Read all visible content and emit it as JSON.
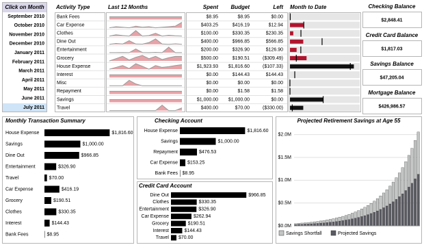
{
  "month_picker": {
    "title": "Click on Month",
    "months": [
      "September 2010",
      "October 2010",
      "November 2010",
      "December 2010",
      "January 2011",
      "February 2011",
      "March 2011",
      "April 2011",
      "May 2011",
      "June 2011",
      "July 2011"
    ],
    "selected_index": 10
  },
  "activity_table": {
    "header": [
      "Activity Type",
      "Spent",
      "Budget",
      "Left"
    ],
    "rows": [
      [
        "Bank Fees",
        "$8.95",
        "$8.95",
        "$0.00"
      ],
      [
        "Car Expense",
        "$403.25",
        "$416.19",
        "$12.94"
      ],
      [
        "Clothes",
        "$100.00",
        "$330.35",
        "$230.35"
      ],
      [
        "Dine Out",
        "$400.00",
        "$966.85",
        "$566.85"
      ],
      [
        "Entertainment",
        "$200.00",
        "$326.90",
        "$126.90"
      ],
      [
        "Grocery",
        "$500.00",
        "$190.51",
        "($309.49)"
      ],
      [
        "House Expense",
        "$1,923.93",
        "$1,816.60",
        "($107.33)"
      ],
      [
        "Interest",
        "$0.00",
        "$144.43",
        "$144.43"
      ],
      [
        "Misc",
        "$0.00",
        "$0.00",
        "$0.00"
      ],
      [
        "Repayment",
        "$0.00",
        "$1.58",
        "$1.58"
      ],
      [
        "Savings",
        "$1,000.00",
        "$1,000.00",
        "$0.00"
      ],
      [
        "Travel",
        "$400.00",
        "$70.00",
        "($330.00)"
      ]
    ],
    "over_budget": [
      false,
      false,
      false,
      false,
      false,
      true,
      true,
      false,
      false,
      false,
      false,
      true
    ]
  },
  "balances": [
    {
      "title": "Checking Balance",
      "value": "$2,848.41",
      "color": "#000000"
    },
    {
      "title": "Credit Card Balance",
      "value": "$1,817.03",
      "color": "#b0152e"
    },
    {
      "title": "Savings Balance",
      "value": "$47,205.04",
      "color": "#000000"
    },
    {
      "title": "Mortgage Balance",
      "value": "$426,986.57",
      "color": "#b0152e"
    }
  ],
  "chart_data": [
    {
      "type": "sparkline",
      "title": "Last 12 Months",
      "color": "#c8323c",
      "line_color": "#999999",
      "series": [
        {
          "values": [
            9,
            9,
            9,
            9,
            9,
            9,
            9,
            9,
            9,
            9,
            9,
            9
          ]
        },
        {
          "values": [
            300,
            320,
            310,
            300,
            330,
            310,
            320,
            300,
            310,
            320,
            330,
            400
          ]
        },
        {
          "values": [
            100,
            150,
            120,
            100,
            300,
            100,
            120,
            200,
            100,
            130,
            110,
            100
          ]
        },
        {
          "values": [
            400,
            450,
            420,
            600,
            420,
            410,
            500,
            700,
            420,
            400,
            430,
            400
          ]
        },
        {
          "values": [
            200,
            200,
            210,
            200,
            500,
            210,
            200,
            220,
            200,
            650,
            200,
            200
          ]
        },
        {
          "values": [
            400,
            450,
            500,
            420,
            480,
            520,
            450,
            500,
            430,
            470,
            500,
            500
          ]
        },
        {
          "values": [
            1800,
            1850,
            1900,
            1820,
            1950,
            1880,
            1800,
            1900,
            1850,
            1870,
            1900,
            1924
          ]
        },
        {
          "values": [
            140,
            140,
            140,
            140,
            140,
            140,
            140,
            140,
            140,
            140,
            140,
            140
          ]
        },
        {
          "values": [
            0,
            0,
            0,
            300,
            100,
            0,
            0,
            0,
            0,
            0,
            0,
            0
          ]
        },
        {
          "values": [
            2,
            2,
            2,
            2,
            2,
            2,
            2,
            2,
            2,
            2,
            2,
            2
          ]
        },
        {
          "values": [
            1000,
            1000,
            1000,
            1000,
            1000,
            1000,
            1000,
            1000,
            1000,
            1000,
            1000,
            1000
          ]
        },
        {
          "values": [
            0,
            0,
            0,
            0,
            0,
            0,
            0,
            0,
            800,
            0,
            0,
            400
          ]
        }
      ]
    },
    {
      "type": "bullet",
      "title": "Month to Date",
      "xlim": [
        0,
        2100
      ],
      "values": [
        8.95,
        403.25,
        100,
        400,
        200,
        500,
        1923.93,
        0,
        0,
        0,
        1000,
        400
      ],
      "targets": [
        8.95,
        416.19,
        330.35,
        966.85,
        326.9,
        190.51,
        1816.6,
        144.43,
        0,
        1.58,
        1000,
        70
      ],
      "colors": [
        "#b0152e",
        "#b0152e",
        "#b0152e",
        "#b0152e",
        "#b0152e",
        "#b0152e",
        "#111111",
        "#b0152e",
        "#b0152e",
        "#b0152e",
        "#111111",
        "#111111"
      ]
    },
    {
      "type": "hbar",
      "title": "Monthly Transaction Summary",
      "color": "#000000",
      "xlim": [
        0,
        2000
      ],
      "categories": [
        "House Expense",
        "Savings",
        "Dine Out",
        "Entertainment",
        "Travel",
        "Car Expense",
        "Grocery",
        "Clothes",
        "Interest",
        "Bank Fees"
      ],
      "values": [
        1816.6,
        1000,
        966.85,
        326.9,
        70,
        416.19,
        190.51,
        330.35,
        144.43,
        8.95
      ],
      "value_labels": [
        "$1,816.60",
        "$1,000.00",
        "$966.85",
        "$326.90",
        "$70.00",
        "$416.19",
        "$190.51",
        "$330.35",
        "$144.43",
        "$8.95"
      ]
    },
    {
      "type": "hbar",
      "title": "Checking Account",
      "color": "#000000",
      "xlim": [
        0,
        2000
      ],
      "categories": [
        "House Expense",
        "Savings",
        "Repayment",
        "Car Expense",
        "Bank Fees"
      ],
      "values": [
        1816.6,
        1000,
        476.53,
        153.25,
        8.95
      ],
      "value_labels": [
        "$1,816.60",
        "$1,000.00",
        "$476.53",
        "$153.25",
        "$8.95"
      ]
    },
    {
      "type": "hbar",
      "title": "Credit Card Account",
      "color": "#000000",
      "xlim": [
        0,
        1000
      ],
      "categories": [
        "Dine Out",
        "Clothes",
        "Entertainment",
        "Car Expense",
        "Grocery",
        "Interest",
        "Travel"
      ],
      "values": [
        966.85,
        330.35,
        326.9,
        262.94,
        190.51,
        144.43,
        70
      ],
      "value_labels": [
        "$966.85",
        "$330.35",
        "$326.90",
        "$262.94",
        "$190.51",
        "$144.43",
        "$70.00"
      ]
    },
    {
      "type": "stacked_bar",
      "title": "Projected Retirement Savings at Age 55",
      "grid": true,
      "ylim": [
        0,
        2.1
      ],
      "yticks": [
        {
          "value": 0,
          "label": "$0.0M"
        },
        {
          "value": 0.5,
          "label": "$0.5M"
        },
        {
          "value": 1,
          "label": "$1.0M"
        },
        {
          "value": 1.5,
          "label": "$1.5M"
        },
        {
          "value": 2,
          "label": "$2.0M"
        }
      ],
      "categories": [
        null,
        null,
        null,
        null,
        null,
        null,
        null,
        null,
        null,
        null,
        null,
        null,
        null,
        null,
        null,
        null,
        null,
        null,
        null,
        null,
        null,
        null,
        null,
        null,
        null,
        null,
        null,
        null,
        null,
        null,
        null,
        null,
        null,
        null,
        null,
        null,
        null,
        null,
        null,
        null
      ],
      "series": [
        {
          "name": "Projected Savings",
          "color": "#5a5a62",
          "values": [
            0.028,
            0.03,
            0.034,
            0.037,
            0.04,
            0.045,
            0.049,
            0.053,
            0.059,
            0.065,
            0.072,
            0.079,
            0.086,
            0.095,
            0.105,
            0.115,
            0.127,
            0.139,
            0.153,
            0.168,
            0.185,
            0.204,
            0.224,
            0.246,
            0.271,
            0.298,
            0.328,
            0.361,
            0.397,
            0.436,
            0.48,
            0.528,
            0.581,
            0.639,
            0.702,
            0.773,
            0.85,
            0.935,
            1.029,
            1.131
          ]
        },
        {
          "name": "Savings Shortfall",
          "color": "#c4c6c6",
          "values": [
            0.022,
            0.025,
            0.027,
            0.03,
            0.033,
            0.036,
            0.04,
            0.044,
            0.048,
            0.053,
            0.058,
            0.064,
            0.071,
            0.078,
            0.085,
            0.094,
            0.103,
            0.114,
            0.125,
            0.138,
            0.151,
            0.166,
            0.183,
            0.202,
            0.221,
            0.244,
            0.268,
            0.295,
            0.324,
            0.357,
            0.392,
            0.432,
            0.475,
            0.522,
            0.575,
            0.632,
            0.696,
            0.765,
            0.841,
            0.926
          ]
        }
      ]
    }
  ]
}
